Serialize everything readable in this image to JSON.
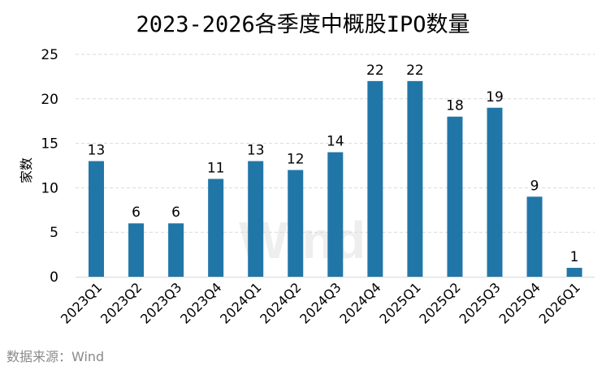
{
  "chart_data": {
    "type": "bar",
    "title": "2023-2026各季度中概股IPO数量",
    "ylabel": "家数",
    "xlabel": "",
    "source": "数据来源：Wind",
    "watermark": "Wind",
    "categories": [
      "2023Q1",
      "2023Q2",
      "2023Q3",
      "2023Q4",
      "2024Q1",
      "2024Q2",
      "2024Q3",
      "2024Q4",
      "2025Q1",
      "2025Q2",
      "2025Q3",
      "2025Q4",
      "2026Q1"
    ],
    "values": [
      13,
      6,
      6,
      11,
      13,
      12,
      14,
      22,
      22,
      18,
      19,
      9,
      1
    ],
    "ylim": [
      0,
      25
    ],
    "yticks": [
      0,
      5,
      10,
      15,
      20,
      25
    ],
    "grid": true,
    "bar_color": "#2176a8",
    "data_labels": true
  }
}
